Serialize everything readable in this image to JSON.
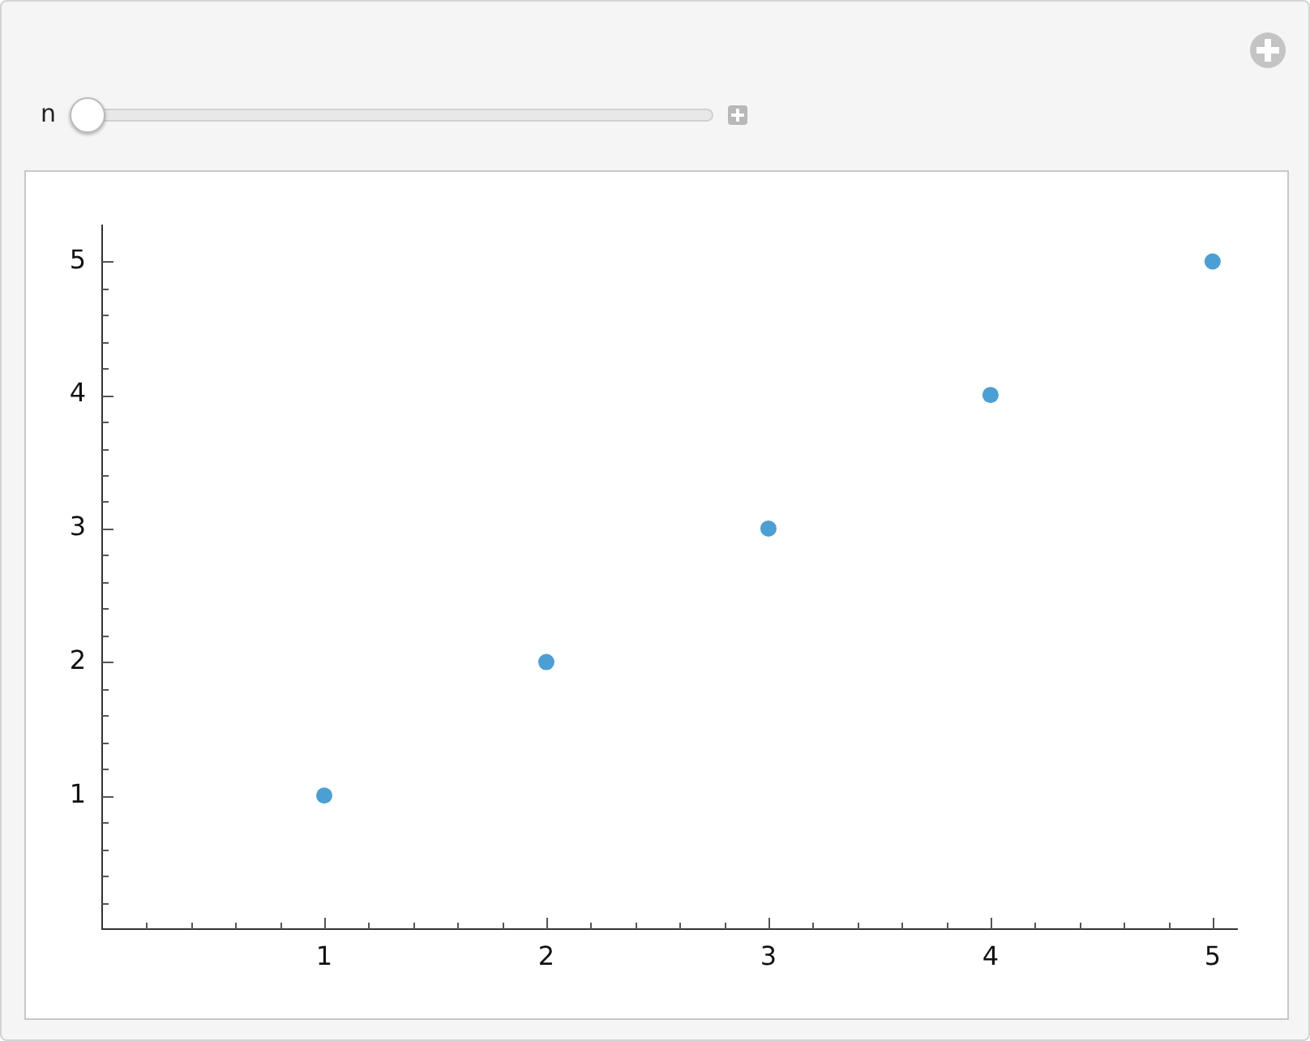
{
  "chart_data": {
    "type": "scatter",
    "annotations": [
      "n"
    ],
    "x": [
      1,
      2,
      3,
      4,
      5
    ],
    "series": [
      {
        "color": "#4a9fd5",
        "values": [
          1,
          2,
          3,
          4,
          5
        ]
      }
    ],
    "marker": "circle",
    "grid": false,
    "legend": false,
    "xlim": [
      0,
      5.11
    ],
    "ylim": [
      0,
      5.27
    ],
    "xticks": [
      {
        "value": 0.2,
        "label": null
      },
      {
        "value": 0.4,
        "label": null
      },
      {
        "value": 0.6,
        "label": null
      },
      {
        "value": 0.8,
        "label": null
      },
      1,
      {
        "value": 1.2,
        "label": null
      },
      {
        "value": 1.4,
        "label": null
      },
      {
        "value": 1.6,
        "label": null
      },
      {
        "value": 1.8,
        "label": null
      },
      2,
      {
        "value": 2.2,
        "label": null
      },
      {
        "value": 2.4,
        "label": null
      },
      {
        "value": 2.6,
        "label": null
      },
      {
        "value": 2.8,
        "label": null
      },
      3,
      {
        "value": 3.2,
        "label": null
      },
      {
        "value": 3.4,
        "label": null
      },
      {
        "value": 3.6,
        "label": null
      },
      {
        "value": 3.8,
        "label": null
      },
      4,
      {
        "value": 4.2,
        "label": null
      },
      {
        "value": 4.4,
        "label": null
      },
      {
        "value": 4.6,
        "label": null
      },
      {
        "value": 4.8,
        "label": null
      },
      5
    ],
    "yticks": [
      {
        "value": 0.2,
        "label": null
      },
      {
        "value": 0.4,
        "label": null
      },
      {
        "value": 0.6,
        "label": null
      },
      {
        "value": 0.8,
        "label": null
      },
      1,
      {
        "value": 1.2,
        "label": null
      },
      {
        "value": 1.4,
        "label": null
      },
      {
        "value": 1.6,
        "label": null
      },
      {
        "value": 1.8,
        "label": null
      },
      2,
      {
        "value": 2.2,
        "label": null
      },
      {
        "value": 2.4,
        "label": null
      },
      {
        "value": 2.6,
        "label": null
      },
      {
        "value": 2.8,
        "label": null
      },
      3,
      {
        "value": 3.2,
        "label": null
      },
      {
        "value": 3.4,
        "label": null
      },
      {
        "value": 3.6,
        "label": null
      },
      {
        "value": 3.8,
        "label": null
      },
      4,
      {
        "value": 4.2,
        "label": null
      },
      {
        "value": 4.4,
        "label": null
      },
      {
        "value": 4.6,
        "label": null
      },
      {
        "value": 4.8,
        "label": null
      },
      5
    ]
  }
}
